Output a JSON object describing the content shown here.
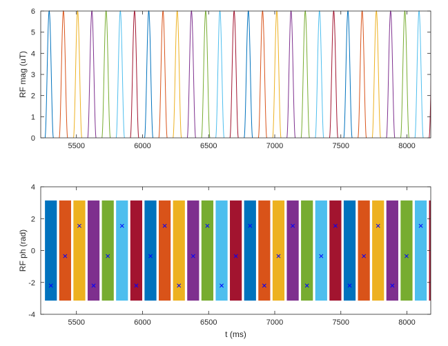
{
  "chart_data": [
    {
      "type": "line",
      "title": "",
      "xlabel": "",
      "ylabel": "RF mag (uT)",
      "xlim": [
        5230,
        8180
      ],
      "ylim": [
        0,
        6
      ],
      "xticks": [
        5500,
        6000,
        6500,
        7000,
        7500,
        8000
      ],
      "yticks": [
        0,
        1,
        2,
        3,
        4,
        5,
        6
      ],
      "grid": false,
      "legend": "none",
      "pulse_shape": "sinc-like lobe, 0 to 6 uT",
      "pulse_width_ms": 64,
      "pulse_period_ms": 107.6,
      "pulse_count": 28,
      "first_pulse_start_ms": 5262,
      "peak_uT": 6,
      "colors": [
        "#0072BD",
        "#D95319",
        "#EDB120",
        "#7E2F8E",
        "#77AC30",
        "#4DBEEE",
        "#A2142F"
      ]
    },
    {
      "type": "bar",
      "title": "",
      "xlabel": "t (ms)",
      "ylabel": "RF ph (rad)",
      "xlim": [
        5230,
        8180
      ],
      "ylim": [
        -4,
        4
      ],
      "xticks": [
        5500,
        6000,
        6500,
        7000,
        7500,
        8000
      ],
      "yticks": [
        -4,
        -2,
        0,
        2,
        4
      ],
      "grid": false,
      "legend": "none",
      "band_range_rad": [
        -3.1416,
        3.1416
      ],
      "band_width_ms": 90,
      "band_period_ms": 107.6,
      "band_count": 28,
      "first_band_start_ms": 5262,
      "marker_phases_rad": [
        -2.2,
        -0.35,
        1.55
      ],
      "marker_color": "#0000FF",
      "colors": [
        "#0072BD",
        "#D95319",
        "#EDB120",
        "#7E2F8E",
        "#77AC30",
        "#4DBEEE",
        "#A2142F"
      ]
    }
  ]
}
